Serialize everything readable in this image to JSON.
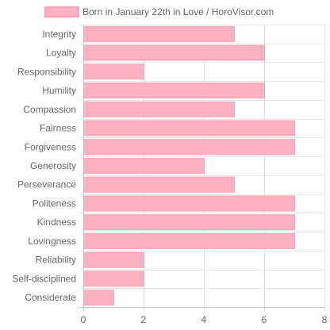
{
  "chart_data": {
    "type": "bar",
    "orientation": "horizontal",
    "legend": {
      "label": "Born in January 22th in Love / HoroVisor.com",
      "position": "top"
    },
    "categories": [
      "Integrity",
      "Loyalty",
      "Responsibility",
      "Humility",
      "Compassion",
      "Fairness",
      "Forgiveness",
      "Generosity",
      "Perseverance",
      "Politeness",
      "Kindness",
      "Lovingness",
      "Reliability",
      "Self-disciplined",
      "Considerate"
    ],
    "values": [
      5,
      6,
      2,
      6,
      5,
      7,
      7,
      4,
      5,
      7,
      7,
      7,
      2,
      2,
      1
    ],
    "xlim": [
      0,
      8
    ],
    "xticks": [
      0,
      2,
      4,
      6,
      8
    ],
    "grid": true,
    "colors": {
      "bar_fill": "#ffb1c1",
      "bar_stroke": "#ff9fb3",
      "grid": "#e6e6e6",
      "axis": "#c8c8c8"
    }
  }
}
